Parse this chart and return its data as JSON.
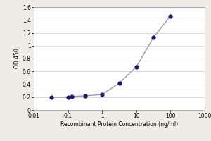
{
  "x_values": [
    0.032,
    0.1,
    0.128,
    0.32,
    1.0,
    3.2,
    10.0,
    32.0,
    100.0
  ],
  "y_values": [
    0.197,
    0.197,
    0.21,
    0.22,
    0.24,
    0.42,
    0.67,
    1.13,
    1.46
  ],
  "xlabel": "Recombinant Protein Concentration (ng/ml)",
  "ylabel": "OD 450",
  "xlim": [
    0.01,
    1000
  ],
  "ylim": [
    0,
    1.6
  ],
  "yticks": [
    0,
    0.2,
    0.4,
    0.6,
    0.8,
    1.0,
    1.2,
    1.4,
    1.6
  ],
  "xticks": [
    0.01,
    0.1,
    1,
    10,
    100,
    1000
  ],
  "xtick_labels": [
    "0.01",
    "0.1",
    "1",
    "10",
    "100",
    "1000"
  ],
  "line_color": "#9999bb",
  "marker_color": "#1a1a6e",
  "marker_size": 3.5,
  "line_width": 1.0,
  "bg_color": "#eeede5",
  "plot_bg_color": "#ffffff",
  "font_size_label": 5.5,
  "font_size_tick": 5.5,
  "ytick_labels": [
    "0",
    "0.2",
    "0.4",
    "0.6",
    "0.8",
    "1",
    "1.2",
    "1.4",
    "1.6"
  ]
}
